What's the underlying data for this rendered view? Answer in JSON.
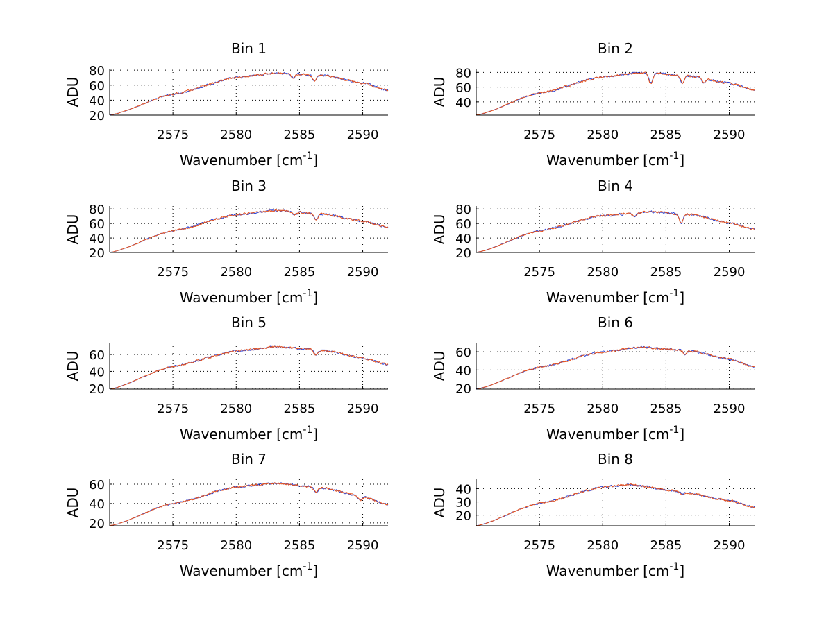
{
  "figure": {
    "background": "#ffffff",
    "series_colors": {
      "blue": "#2b44d6",
      "orange": "#e8541e"
    }
  },
  "chart_data": [
    {
      "type": "line",
      "title": "Bin 1",
      "xlabel": "Wavenumber [cm",
      "xlabel_sup": "-1",
      "xlabel_end": "]",
      "ylabel": "ADU",
      "xlim": [
        2570,
        2592
      ],
      "ylim": [
        20,
        82
      ],
      "xticks": [
        2575,
        2580,
        2585,
        2590
      ],
      "yticks": [
        20,
        40,
        60,
        80
      ],
      "grid": true,
      "profile": {
        "x": [
          2570,
          2575,
          2580,
          2583,
          2587,
          2590,
          2592
        ],
        "y": [
          20,
          48,
          70,
          76,
          73,
          63,
          53
        ]
      },
      "dips": [
        {
          "x": 2586.2,
          "depth": 8
        },
        {
          "x": 2584.5,
          "depth": 5
        }
      ],
      "series": [
        {
          "name": "blue",
          "color": "#2b44d6"
        },
        {
          "name": "orange",
          "color": "#e8541e"
        }
      ]
    },
    {
      "type": "line",
      "title": "Bin 2",
      "xlabel": "Wavenumber [cm",
      "xlabel_sup": "-1",
      "xlabel_end": "]",
      "ylabel": "ADU",
      "xlim": [
        2570,
        2592
      ],
      "ylim": [
        22,
        85
      ],
      "xticks": [
        2575,
        2580,
        2585,
        2590
      ],
      "yticks": [
        40,
        60,
        80
      ],
      "grid": true,
      "profile": {
        "x": [
          2570,
          2575,
          2580,
          2583,
          2587,
          2590,
          2592
        ],
        "y": [
          22,
          52,
          74,
          80,
          75,
          65,
          56
        ]
      },
      "dips": [
        {
          "x": 2583.8,
          "depth": 14
        },
        {
          "x": 2586.3,
          "depth": 10
        },
        {
          "x": 2588.0,
          "depth": 6
        }
      ],
      "series": [
        {
          "name": "blue",
          "color": "#2b44d6"
        },
        {
          "name": "orange",
          "color": "#e8541e"
        }
      ]
    },
    {
      "type": "line",
      "title": "Bin 3",
      "xlabel": "Wavenumber [cm",
      "xlabel_sup": "-1",
      "xlabel_end": "]",
      "ylabel": "ADU",
      "xlim": [
        2570,
        2592
      ],
      "ylim": [
        20,
        84
      ],
      "xticks": [
        2575,
        2580,
        2585,
        2590
      ],
      "yticks": [
        20,
        40,
        60,
        80
      ],
      "grid": true,
      "profile": {
        "x": [
          2570,
          2575,
          2580,
          2583,
          2587,
          2590,
          2592
        ],
        "y": [
          20,
          50,
          72,
          78,
          73,
          63,
          55
        ]
      },
      "dips": [
        {
          "x": 2586.3,
          "depth": 8
        },
        {
          "x": 2584.6,
          "depth": 4
        }
      ],
      "series": [
        {
          "name": "blue",
          "color": "#2b44d6"
        },
        {
          "name": "orange",
          "color": "#e8541e"
        }
      ]
    },
    {
      "type": "line",
      "title": "Bin 4",
      "xlabel": "Wavenumber [cm",
      "xlabel_sup": "-1",
      "xlabel_end": "]",
      "ylabel": "ADU",
      "xlim": [
        2570,
        2592
      ],
      "ylim": [
        20,
        84
      ],
      "xticks": [
        2575,
        2580,
        2585,
        2590
      ],
      "yticks": [
        20,
        40,
        60,
        80
      ],
      "grid": true,
      "profile": {
        "x": [
          2570,
          2575,
          2580,
          2584,
          2587,
          2590,
          2592
        ],
        "y": [
          20,
          50,
          71,
          76,
          72,
          61,
          52
        ]
      },
      "dips": [
        {
          "x": 2586.2,
          "depth": 12
        },
        {
          "x": 2582.5,
          "depth": 4
        }
      ],
      "series": [
        {
          "name": "blue",
          "color": "#2b44d6"
        },
        {
          "name": "orange",
          "color": "#e8541e"
        }
      ]
    },
    {
      "type": "line",
      "title": "Bin 5",
      "xlabel": "Wavenumber [cm",
      "xlabel_sup": "-1",
      "xlabel_end": "]",
      "ylabel": "ADU",
      "xlim": [
        2570,
        2592
      ],
      "ylim": [
        19,
        74
      ],
      "xticks": [
        2575,
        2580,
        2585,
        2590
      ],
      "yticks": [
        20,
        40,
        60
      ],
      "grid": true,
      "profile": {
        "x": [
          2570,
          2575,
          2580,
          2583,
          2587,
          2590,
          2592
        ],
        "y": [
          19,
          46,
          64,
          69,
          65,
          56,
          48
        ]
      },
      "dips": [
        {
          "x": 2586.3,
          "depth": 6
        }
      ],
      "series": [
        {
          "name": "blue",
          "color": "#2b44d6"
        },
        {
          "name": "orange",
          "color": "#e8541e"
        }
      ]
    },
    {
      "type": "line",
      "title": "Bin 6",
      "xlabel": "Wavenumber [cm",
      "xlabel_sup": "-1",
      "xlabel_end": "]",
      "ylabel": "ADU",
      "xlim": [
        2570,
        2592
      ],
      "ylim": [
        19,
        70
      ],
      "xticks": [
        2575,
        2580,
        2585,
        2590
      ],
      "yticks": [
        20,
        40,
        60
      ],
      "grid": true,
      "profile": {
        "x": [
          2570,
          2575,
          2580,
          2583,
          2587,
          2590,
          2592
        ],
        "y": [
          19,
          43,
          60,
          65,
          61,
          52,
          43
        ]
      },
      "dips": [
        {
          "x": 2586.5,
          "depth": 4
        }
      ],
      "series": [
        {
          "name": "blue",
          "color": "#2b44d6"
        },
        {
          "name": "orange",
          "color": "#e8541e"
        }
      ]
    },
    {
      "type": "line",
      "title": "Bin 7",
      "xlabel": "Wavenumber [cm",
      "xlabel_sup": "-1",
      "xlabel_end": "]",
      "ylabel": "ADU",
      "xlim": [
        2570,
        2592
      ],
      "ylim": [
        17,
        65
      ],
      "xticks": [
        2575,
        2580,
        2585,
        2590
      ],
      "yticks": [
        20,
        40,
        60
      ],
      "grid": true,
      "profile": {
        "x": [
          2570,
          2575,
          2580,
          2583,
          2587,
          2590,
          2592
        ],
        "y": [
          17,
          40,
          57,
          61,
          56,
          47,
          39
        ]
      },
      "dips": [
        {
          "x": 2586.3,
          "depth": 5
        },
        {
          "x": 2589.8,
          "depth": 4
        }
      ],
      "series": [
        {
          "name": "blue",
          "color": "#2b44d6"
        },
        {
          "name": "orange",
          "color": "#e8541e"
        }
      ]
    },
    {
      "type": "line",
      "title": "Bin 8",
      "xlabel": "Wavenumber [cm",
      "xlabel_sup": "-1",
      "xlabel_end": "]",
      "ylabel": "ADU",
      "xlim": [
        2570,
        2592
      ],
      "ylim": [
        12,
        47
      ],
      "xticks": [
        2575,
        2580,
        2585,
        2590
      ],
      "yticks": [
        20,
        30,
        40
      ],
      "grid": true,
      "profile": {
        "x": [
          2570,
          2575,
          2580,
          2582,
          2586,
          2590,
          2592
        ],
        "y": [
          12,
          29,
          41,
          43,
          38,
          31,
          26
        ]
      },
      "dips": [
        {
          "x": 2586.3,
          "depth": 2
        }
      ],
      "series": [
        {
          "name": "blue",
          "color": "#2b44d6"
        },
        {
          "name": "orange",
          "color": "#e8541e"
        }
      ]
    }
  ]
}
